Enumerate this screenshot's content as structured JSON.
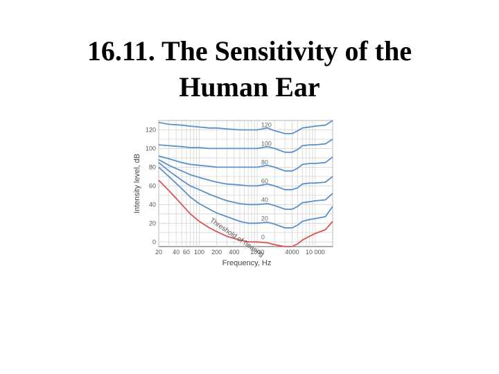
{
  "slide": {
    "title_line1": "16.11. The Sensitivity of the",
    "title_line2": "Human Ear"
  },
  "chart_data": {
    "type": "line",
    "title": "",
    "xlabel": "Frequency, Hz",
    "ylabel": "Intensity level, dB",
    "x_scale": "log",
    "xlim": [
      20,
      20000
    ],
    "ylim": [
      -5,
      130
    ],
    "grid": true,
    "x_ticks": [
      20,
      40,
      60,
      100,
      200,
      400,
      1000,
      4000,
      10000
    ],
    "x_tick_labels": [
      "20",
      "40",
      "60",
      "100",
      "200",
      "400",
      "1000",
      "4000",
      "10 000"
    ],
    "y_ticks": [
      0,
      20,
      40,
      60,
      80,
      100,
      120
    ],
    "y_tick_labels": [
      "0",
      "20",
      "40",
      "60",
      "80",
      "100",
      "120"
    ],
    "x": [
      20,
      30,
      50,
      70,
      100,
      150,
      200,
      300,
      500,
      700,
      1000,
      1500,
      2000,
      3000,
      4000,
      5000,
      6000,
      8000,
      10000,
      15000,
      20000
    ],
    "series": [
      {
        "name": "0",
        "color": "#d9534f",
        "values": [
          66,
          55,
          40,
          30,
          22,
          15,
          11,
          6,
          2,
          0,
          0,
          -1,
          -3,
          -5,
          -5,
          -2,
          2,
          6,
          9,
          13,
          22
        ]
      },
      {
        "name": "20",
        "color": "#5b8fc9",
        "values": [
          80,
          70,
          57,
          48,
          41,
          35,
          31,
          27,
          22,
          20,
          20,
          21,
          19,
          15,
          15,
          18,
          22,
          24,
          25,
          27,
          38
        ]
      },
      {
        "name": "40",
        "color": "#5b8fc9",
        "values": [
          85,
          76,
          66,
          60,
          56,
          51,
          48,
          44,
          41,
          40,
          40,
          41,
          39,
          35,
          35,
          38,
          42,
          43,
          44,
          45,
          52
        ]
      },
      {
        "name": "60",
        "color": "#5b8fc9",
        "values": [
          88,
          82,
          76,
          72,
          69,
          66,
          64,
          62,
          61,
          60,
          60,
          62,
          60,
          56,
          56,
          58,
          62,
          63,
          63,
          64,
          70
        ]
      },
      {
        "name": "80",
        "color": "#5b8fc9",
        "values": [
          92,
          89,
          85,
          83,
          82,
          81,
          80,
          80,
          80,
          80,
          80,
          82,
          80,
          76,
          76,
          79,
          83,
          84,
          84,
          85,
          91
        ]
      },
      {
        "name": "100",
        "color": "#5b8fc9",
        "values": [
          104,
          103,
          102,
          101,
          101,
          100,
          100,
          100,
          100,
          100,
          100,
          102,
          100,
          96,
          96,
          99,
          103,
          104,
          104,
          105,
          110
        ]
      },
      {
        "name": "120",
        "color": "#5b8fc9",
        "values": [
          128,
          126,
          125,
          124,
          123,
          122,
          122,
          121,
          120,
          120,
          120,
          122,
          119,
          116,
          116,
          119,
          122,
          123,
          124,
          125,
          130
        ]
      }
    ],
    "annotation": "Threshold of hearing"
  }
}
